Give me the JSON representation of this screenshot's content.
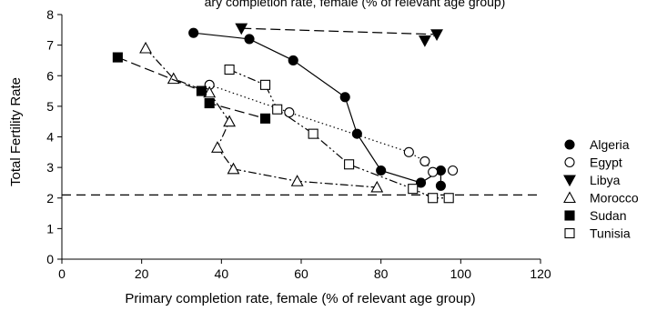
{
  "chart_data": {
    "type": "scatter",
    "title": "ary completion rate, female (% of relevant age group)",
    "xlabel": "Primary completion rate, female (% of relevant age group)",
    "ylabel": "Total Fertility Rate",
    "xlim": [
      0,
      120
    ],
    "ylim": [
      0,
      8
    ],
    "xticks": [
      "0",
      "20",
      "40",
      "60",
      "80",
      "100",
      "120"
    ],
    "yticks": [
      "0",
      "1",
      "2",
      "3",
      "4",
      "5",
      "6",
      "7",
      "8"
    ],
    "grid": false,
    "legend_position": "right",
    "reference_line": {
      "y": 2.1
    },
    "series": [
      {
        "name": "Algeria",
        "marker": "filled-circle",
        "line": "solid",
        "points": [
          [
            33,
            7.4
          ],
          [
            47,
            7.2
          ],
          [
            58,
            6.5
          ],
          [
            71,
            5.3
          ],
          [
            74,
            4.1
          ],
          [
            80,
            2.9
          ],
          [
            90,
            2.5
          ],
          [
            95,
            2.9
          ],
          [
            95,
            2.4
          ]
        ]
      },
      {
        "name": "Egypt",
        "marker": "open-circle",
        "line": "dotted",
        "points": [
          [
            37,
            5.7
          ],
          [
            57,
            4.8
          ],
          [
            87,
            3.5
          ],
          [
            91,
            3.2
          ],
          [
            93,
            2.85
          ],
          [
            98,
            2.9
          ]
        ]
      },
      {
        "name": "Libya",
        "marker": "filled-triangle-down",
        "line": "dashed",
        "points": [
          [
            45,
            7.55
          ],
          [
            94,
            7.35
          ],
          [
            91,
            7.15
          ]
        ]
      },
      {
        "name": "Morocco",
        "marker": "open-triangle-up",
        "line": "dash-dot",
        "points": [
          [
            21,
            6.9
          ],
          [
            28,
            5.9
          ],
          [
            37,
            5.45
          ],
          [
            42,
            4.5
          ],
          [
            39,
            3.65
          ],
          [
            43,
            2.95
          ],
          [
            59,
            2.55
          ],
          [
            79,
            2.35
          ]
        ]
      },
      {
        "name": "Sudan",
        "marker": "filled-square",
        "line": "dashed",
        "points": [
          [
            14,
            6.6
          ],
          [
            35,
            5.5
          ],
          [
            37,
            5.1
          ],
          [
            51,
            4.6
          ]
        ]
      },
      {
        "name": "Tunisia",
        "marker": "open-square",
        "line": "dash-dot-dot",
        "points": [
          [
            42,
            6.2
          ],
          [
            51,
            5.7
          ],
          [
            54,
            4.9
          ],
          [
            63,
            4.1
          ],
          [
            72,
            3.1
          ],
          [
            88,
            2.3
          ],
          [
            93,
            2.0
          ],
          [
            97,
            2.0
          ]
        ]
      }
    ]
  }
}
